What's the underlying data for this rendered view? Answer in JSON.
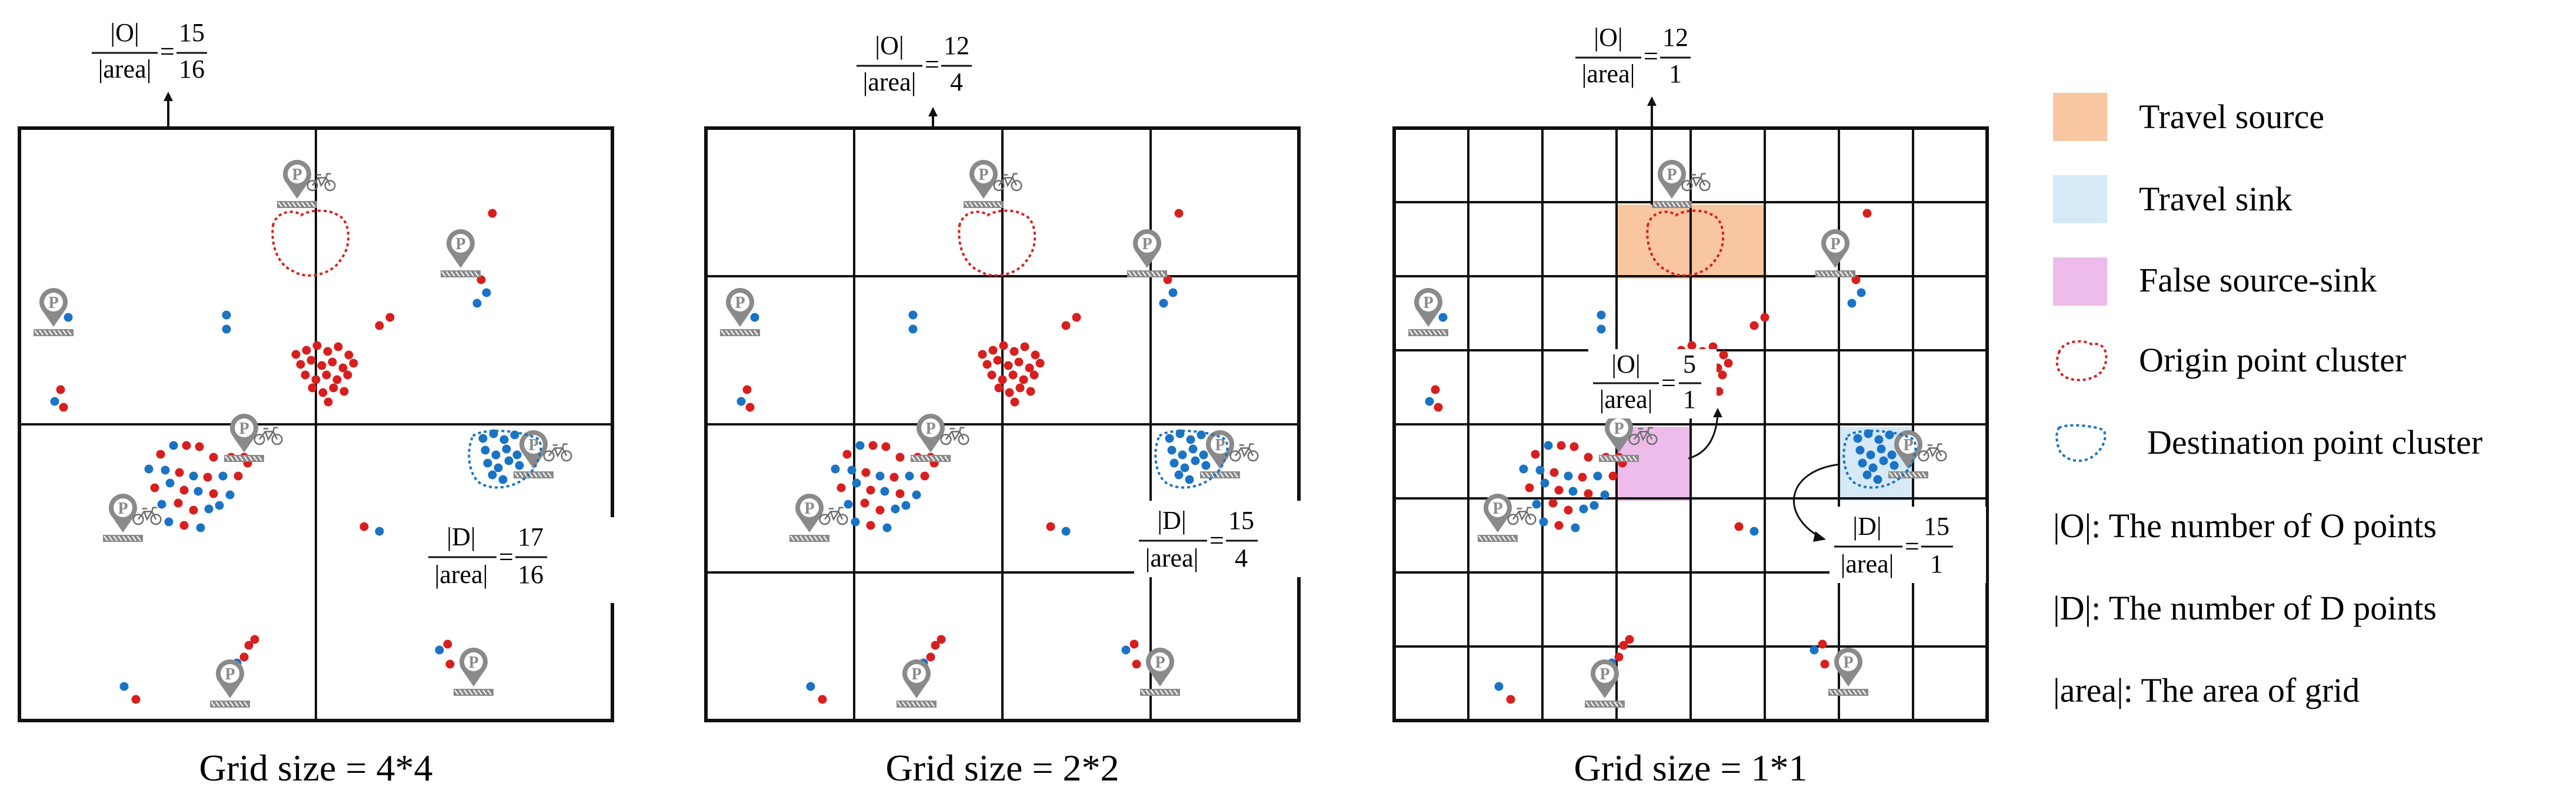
{
  "panels": [
    {
      "caption": "Grid size = 4*4",
      "top_formula": {
        "lhs_num": "|O|",
        "lhs_den": "|area|",
        "eq": "=",
        "rhs_num": "15",
        "rhs_den": "16"
      },
      "side_formula": {
        "lhs_num": "|D|",
        "lhs_den": "|area|",
        "eq": "=",
        "rhs_num": "17",
        "rhs_den": "16"
      }
    },
    {
      "caption": "Grid size = 2*2",
      "top_formula": {
        "lhs_num": "|O|",
        "lhs_den": "|area|",
        "eq": "=",
        "rhs_num": "12",
        "rhs_den": "4"
      },
      "side_formula": {
        "lhs_num": "|D|",
        "lhs_den": "|area|",
        "eq": "=",
        "rhs_num": "15",
        "rhs_den": "4"
      }
    },
    {
      "caption": "Grid size = 1*1",
      "top_formula": {
        "lhs_num": "|O|",
        "lhs_den": "|area|",
        "eq": "=",
        "rhs_num": "12",
        "rhs_den": "1"
      },
      "mid_formula": {
        "lhs_num": "|O|",
        "lhs_den": "|area|",
        "eq": "=",
        "rhs_num": "5",
        "rhs_den": "1"
      },
      "side_formula": {
        "lhs_num": "|D|",
        "lhs_den": "|area|",
        "eq": "=",
        "rhs_num": "15",
        "rhs_den": "1"
      }
    }
  ],
  "legend": {
    "items": [
      {
        "label": "Travel source",
        "color": "#f8c6a0"
      },
      {
        "label": "Travel sink",
        "color": "#d6e9f6"
      },
      {
        "label": "False source-sink",
        "color": "#eebcea"
      },
      {
        "label": "Origin point cluster",
        "color": "#d81e1e"
      },
      {
        "label": "Destination point cluster",
        "color": "#1a73c4"
      }
    ],
    "notes": [
      "|O|: The number of O points",
      "|D|: The number of D points",
      "|area|: The area of grid"
    ]
  },
  "colors": {
    "origin": "#d81e1e",
    "destination": "#1a73c4",
    "icon": "#8a8a8a",
    "grid": "#111111"
  }
}
